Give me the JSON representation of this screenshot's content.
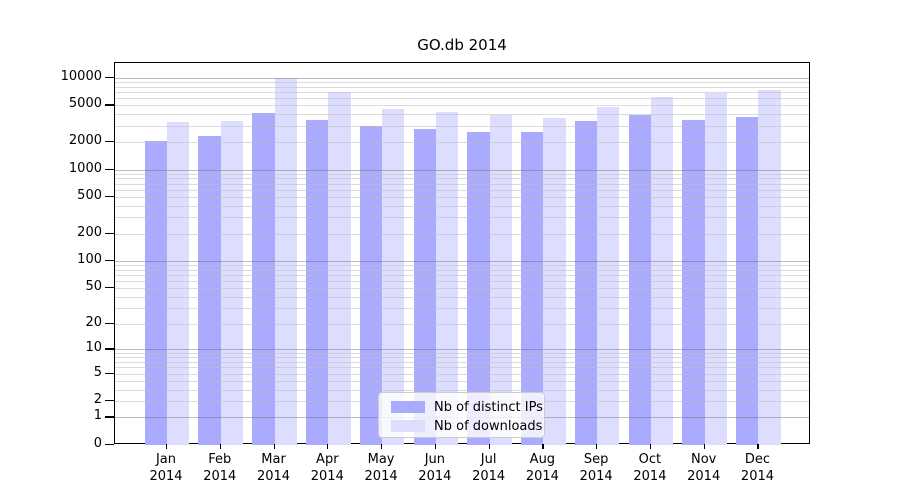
{
  "title": "GO.db 2014",
  "chart_data": {
    "type": "bar",
    "title": "GO.db 2014",
    "scale": "log1p",
    "grid": true,
    "legend_position": "bottom-center",
    "categories": [
      "Jan",
      "Feb",
      "Mar",
      "Apr",
      "May",
      "Jun",
      "Jul",
      "Aug",
      "Sep",
      "Oct",
      "Nov",
      "Dec"
    ],
    "year_label": "2014",
    "yticks": [
      0,
      1,
      2,
      5,
      10,
      20,
      50,
      100,
      200,
      500,
      1000,
      2000,
      5000,
      10000
    ],
    "ylim": [
      0,
      14000
    ],
    "series": [
      {
        "name": "Nb of distinct IPs",
        "color": "#aaaaff",
        "values": [
          2050,
          2350,
          4150,
          3500,
          2950,
          2750,
          2550,
          2550,
          3350,
          3950,
          3450,
          3750
        ]
      },
      {
        "name": "Nb of downloads",
        "color": "#ddddff",
        "values": [
          3300,
          3350,
          10000,
          7000,
          4600,
          4250,
          3950,
          3650,
          4850,
          6200,
          6800,
          7400
        ]
      }
    ]
  }
}
